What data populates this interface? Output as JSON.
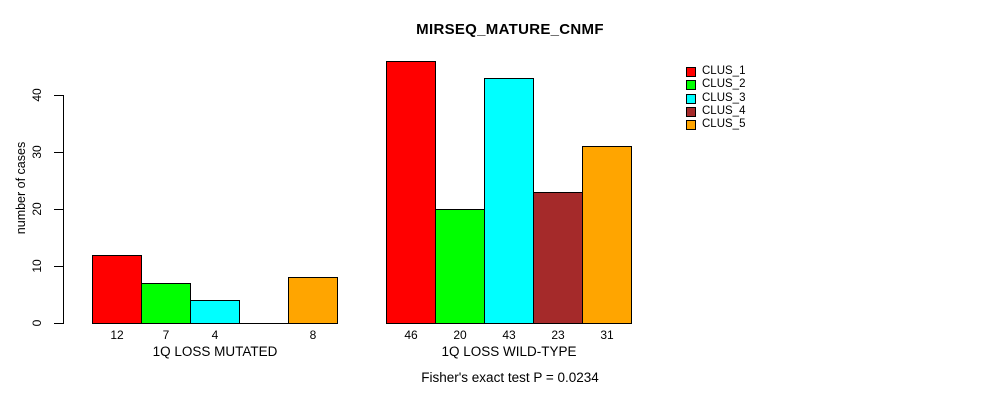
{
  "chart_data": {
    "type": "bar",
    "title": "MIRSEQ_MATURE_CNMF",
    "ylabel": "number of cases",
    "xlabel": "",
    "caption": "Fisher's exact test P = 0.0234",
    "yticks": [
      0,
      10,
      20,
      30,
      40
    ],
    "ylim": [
      0,
      46
    ],
    "grid": false,
    "bar_value_labels_shown": true,
    "legend_position": "right-of-plot",
    "series": [
      {
        "name": "CLUS_1",
        "color": "#FF0000"
      },
      {
        "name": "CLUS_2",
        "color": "#00FF00"
      },
      {
        "name": "CLUS_3",
        "color": "#00FFFF"
      },
      {
        "name": "CLUS_4",
        "color": "#A52A2A"
      },
      {
        "name": "CLUS_5",
        "color": "#FFA500"
      }
    ],
    "groups": [
      {
        "label": "1Q LOSS MUTATED",
        "values": [
          12,
          7,
          4,
          0,
          8
        ]
      },
      {
        "label": "1Q LOSS WILD-TYPE",
        "values": [
          46,
          20,
          43,
          23,
          31
        ]
      }
    ]
  }
}
